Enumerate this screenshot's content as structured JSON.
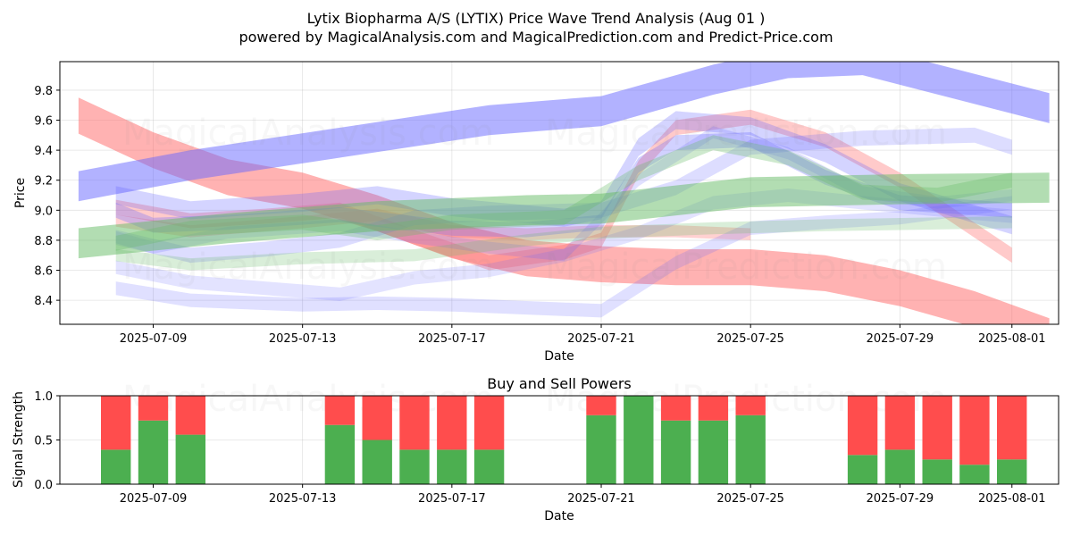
{
  "figure": {
    "title_line1": "Lytix Biopharma A/S (LYTIX) Price Wave Trend Analysis (Aug 01 )",
    "title_line2": "powered by MagicalAnalysis.com and MagicalPrediction.com and Predict-Price.com",
    "watermarks": [
      "MagicalAnalysis.com",
      "MagicalPrediction.com"
    ]
  },
  "colors": {
    "red_band": "#ff6666",
    "blue_band": "#6666ff",
    "green_band": "#66bb66",
    "buy": "#4caf50",
    "sell": "#ff4d4d"
  },
  "chart_data": [
    {
      "type": "area",
      "title": "",
      "xlabel": "Date",
      "ylabel": "Price",
      "x_range": [
        "2025-07-06T12:00",
        "2025-08-02T06:00"
      ],
      "ylim": [
        8.24,
        9.99
      ],
      "x_ticks": [
        "2025-07-09",
        "2025-07-13",
        "2025-07-17",
        "2025-07-21",
        "2025-07-25",
        "2025-07-29",
        "2025-08-01"
      ],
      "y_ticks": [
        8.4,
        8.6,
        8.8,
        9.0,
        9.2,
        9.4,
        9.6,
        9.8
      ],
      "grid": true,
      "series": [
        {
          "color": "red",
          "opacity": 0.5,
          "width": 0.24,
          "points": [
            [
              "2025-07-07",
              9.63
            ],
            [
              "2025-07-09",
              9.4
            ],
            [
              "2025-07-11",
              9.22
            ],
            [
              "2025-07-13",
              9.13
            ],
            [
              "2025-07-15",
              8.98
            ],
            [
              "2025-07-17",
              8.8
            ],
            [
              "2025-07-19",
              8.68
            ],
            [
              "2025-07-21",
              8.64
            ],
            [
              "2025-07-23",
              8.62
            ],
            [
              "2025-07-25",
              8.62
            ],
            [
              "2025-07-27",
              8.58
            ],
            [
              "2025-07-29",
              8.48
            ],
            [
              "2025-07-31",
              8.34
            ],
            [
              "2025-08-02",
              8.16
            ]
          ]
        },
        {
          "color": "red",
          "opacity": 0.35,
          "width": 0.1,
          "points": [
            [
              "2025-07-08",
              9.02
            ],
            [
              "2025-07-10",
              8.93
            ],
            [
              "2025-07-12",
              8.96
            ],
            [
              "2025-07-14",
              9.0
            ],
            [
              "2025-07-16",
              8.82
            ],
            [
              "2025-07-18",
              8.65
            ],
            [
              "2025-07-20",
              8.72
            ],
            [
              "2025-07-21",
              8.8
            ],
            [
              "2025-07-22",
              9.28
            ],
            [
              "2025-07-23",
              9.55
            ],
            [
              "2025-07-25",
              9.62
            ],
            [
              "2025-07-27",
              9.47
            ],
            [
              "2025-07-29",
              9.2
            ],
            [
              "2025-08-01",
              8.7
            ]
          ]
        },
        {
          "color": "red",
          "opacity": 0.3,
          "width": 0.08,
          "points": [
            [
              "2025-07-08",
              8.93
            ],
            [
              "2025-07-10",
              8.86
            ],
            [
              "2025-07-13",
              8.92
            ],
            [
              "2025-07-15",
              8.97
            ],
            [
              "2025-07-17",
              8.86
            ],
            [
              "2025-07-19",
              8.84
            ],
            [
              "2025-07-21",
              8.86
            ],
            [
              "2025-07-23",
              8.86
            ],
            [
              "2025-07-25",
              8.84
            ]
          ]
        },
        {
          "color": "blue",
          "opacity": 0.5,
          "width": 0.2,
          "points": [
            [
              "2025-07-07",
              9.16
            ],
            [
              "2025-07-10",
              9.3
            ],
            [
              "2025-07-14",
              9.45
            ],
            [
              "2025-07-18",
              9.6
            ],
            [
              "2025-07-21",
              9.66
            ],
            [
              "2025-07-24",
              9.87
            ],
            [
              "2025-07-26",
              9.98
            ],
            [
              "2025-07-28",
              10.0
            ],
            [
              "2025-08-02",
              9.68
            ]
          ]
        },
        {
          "color": "blue",
          "opacity": 0.3,
          "width": 0.1,
          "points": [
            [
              "2025-07-08",
              9.0
            ],
            [
              "2025-07-09",
              8.9
            ],
            [
              "2025-07-11",
              8.92
            ],
            [
              "2025-07-14",
              8.97
            ],
            [
              "2025-07-17",
              8.88
            ],
            [
              "2025-07-19",
              8.87
            ],
            [
              "2025-07-21",
              8.92
            ],
            [
              "2025-07-22",
              9.3
            ],
            [
              "2025-07-23",
              9.45
            ],
            [
              "2025-07-25",
              9.47
            ],
            [
              "2025-07-27",
              9.22
            ],
            [
              "2025-07-29",
              9.05
            ],
            [
              "2025-08-01",
              9.0
            ]
          ]
        },
        {
          "color": "blue",
          "opacity": 0.28,
          "width": 0.12,
          "points": [
            [
              "2025-07-08",
              9.1
            ],
            [
              "2025-07-10",
              9.0
            ],
            [
              "2025-07-13",
              9.05
            ],
            [
              "2025-07-15",
              9.1
            ],
            [
              "2025-07-17",
              9.02
            ],
            [
              "2025-07-20",
              8.95
            ],
            [
              "2025-07-21",
              9.0
            ],
            [
              "2025-07-22",
              9.42
            ],
            [
              "2025-07-23",
              9.6
            ],
            [
              "2025-07-25",
              9.56
            ],
            [
              "2025-07-27",
              9.38
            ],
            [
              "2025-07-29",
              9.12
            ],
            [
              "2025-08-01",
              8.9
            ]
          ]
        },
        {
          "color": "blue",
          "opacity": 0.22,
          "width": 0.1,
          "points": [
            [
              "2025-07-08",
              8.82
            ],
            [
              "2025-07-10",
              8.7
            ],
            [
              "2025-07-12",
              8.74
            ],
            [
              "2025-07-14",
              8.8
            ],
            [
              "2025-07-16",
              8.95
            ],
            [
              "2025-07-18",
              8.98
            ],
            [
              "2025-07-21",
              9.0
            ],
            [
              "2025-07-23",
              9.15
            ],
            [
              "2025-07-25",
              9.42
            ],
            [
              "2025-07-28",
              9.48
            ],
            [
              "2025-07-31",
              9.5
            ],
            [
              "2025-08-01",
              9.42
            ]
          ]
        },
        {
          "color": "blue",
          "opacity": 0.2,
          "width": 0.09,
          "points": [
            [
              "2025-07-08",
              8.48
            ],
            [
              "2025-07-10",
              8.4
            ],
            [
              "2025-07-13",
              8.37
            ],
            [
              "2025-07-15",
              8.38
            ],
            [
              "2025-07-17",
              8.37
            ],
            [
              "2025-07-19",
              8.35
            ],
            [
              "2025-07-21",
              8.33
            ],
            [
              "2025-07-23",
              8.65
            ],
            [
              "2025-07-25",
              8.88
            ],
            [
              "2025-07-27",
              8.92
            ],
            [
              "2025-07-29",
              8.95
            ],
            [
              "2025-08-01",
              9.05
            ]
          ]
        },
        {
          "color": "blue",
          "opacity": 0.18,
          "width": 0.09,
          "points": [
            [
              "2025-07-08",
              8.62
            ],
            [
              "2025-07-10",
              8.52
            ],
            [
              "2025-07-12",
              8.48
            ],
            [
              "2025-07-14",
              8.44
            ],
            [
              "2025-07-16",
              8.55
            ],
            [
              "2025-07-18",
              8.6
            ],
            [
              "2025-07-20",
              8.7
            ],
            [
              "2025-07-22",
              8.85
            ],
            [
              "2025-07-24",
              9.05
            ],
            [
              "2025-07-26",
              9.1
            ],
            [
              "2025-07-28",
              9.05
            ],
            [
              "2025-07-31",
              8.98
            ],
            [
              "2025-08-01",
              8.96
            ]
          ]
        },
        {
          "color": "blue",
          "opacity": 0.2,
          "width": 0.08,
          "points": [
            [
              "2025-07-08",
              8.82
            ],
            [
              "2025-07-09",
              8.75
            ],
            [
              "2025-07-11",
              8.85
            ],
            [
              "2025-07-14",
              8.9
            ],
            [
              "2025-07-16",
              8.82
            ],
            [
              "2025-07-18",
              8.75
            ],
            [
              "2025-07-20",
              8.7
            ],
            [
              "2025-07-22",
              9.2
            ],
            [
              "2025-07-24",
              9.52
            ],
            [
              "2025-07-26",
              9.38
            ],
            [
              "2025-07-28",
              9.12
            ],
            [
              "2025-07-30",
              9.05
            ],
            [
              "2025-08-01",
              9.1
            ]
          ]
        },
        {
          "color": "green",
          "opacity": 0.5,
          "width": 0.2,
          "points": [
            [
              "2025-07-07",
              8.78
            ],
            [
              "2025-07-11",
              8.88
            ],
            [
              "2025-07-15",
              8.96
            ],
            [
              "2025-07-19",
              9.0
            ],
            [
              "2025-07-21",
              9.01
            ],
            [
              "2025-07-25",
              9.12
            ],
            [
              "2025-07-29",
              9.14
            ],
            [
              "2025-08-02",
              9.15
            ]
          ]
        },
        {
          "color": "green",
          "opacity": 0.32,
          "width": 0.1,
          "points": [
            [
              "2025-07-08",
              8.78
            ],
            [
              "2025-07-10",
              8.88
            ],
            [
              "2025-07-13",
              8.92
            ],
            [
              "2025-07-15",
              8.85
            ],
            [
              "2025-07-17",
              8.92
            ],
            [
              "2025-07-20",
              8.95
            ],
            [
              "2025-07-22",
              9.25
            ],
            [
              "2025-07-24",
              9.45
            ],
            [
              "2025-07-26",
              9.35
            ],
            [
              "2025-07-28",
              9.12
            ],
            [
              "2025-07-30",
              9.1
            ],
            [
              "2025-08-01",
              9.2
            ]
          ]
        },
        {
          "color": "green",
          "opacity": 0.25,
          "width": 0.08,
          "points": [
            [
              "2025-07-08",
              8.7
            ],
            [
              "2025-07-10",
              8.64
            ],
            [
              "2025-07-13",
              8.68
            ],
            [
              "2025-07-16",
              8.7
            ],
            [
              "2025-07-19",
              8.8
            ],
            [
              "2025-07-21",
              8.85
            ],
            [
              "2025-07-24",
              8.88
            ],
            [
              "2025-07-27",
              8.9
            ],
            [
              "2025-08-01",
              8.92
            ]
          ]
        }
      ]
    },
    {
      "type": "bar",
      "title": "Buy and Sell Powers",
      "xlabel": "Date",
      "ylabel": "Signal Strength",
      "x_range": [
        "2025-07-06T12:00",
        "2025-08-02T06:00"
      ],
      "ylim": [
        0,
        1.0
      ],
      "x_ticks": [
        "2025-07-09",
        "2025-07-13",
        "2025-07-17",
        "2025-07-21",
        "2025-07-25",
        "2025-07-29",
        "2025-08-01"
      ],
      "y_ticks": [
        0.0,
        0.5,
        1.0
      ],
      "grid": true,
      "series": [
        {
          "name": "Buy",
          "color": "green"
        },
        {
          "name": "Sell",
          "color": "red"
        }
      ],
      "bars": [
        {
          "date": "2025-07-08",
          "buy": 0.39
        },
        {
          "date": "2025-07-09",
          "buy": 0.72
        },
        {
          "date": "2025-07-10",
          "buy": 0.56
        },
        {
          "date": "2025-07-14",
          "buy": 0.67
        },
        {
          "date": "2025-07-15",
          "buy": 0.5
        },
        {
          "date": "2025-07-16",
          "buy": 0.39
        },
        {
          "date": "2025-07-17",
          "buy": 0.39
        },
        {
          "date": "2025-07-18",
          "buy": 0.39
        },
        {
          "date": "2025-07-21",
          "buy": 0.78
        },
        {
          "date": "2025-07-22",
          "buy": 1.0
        },
        {
          "date": "2025-07-23",
          "buy": 0.72
        },
        {
          "date": "2025-07-24",
          "buy": 0.72
        },
        {
          "date": "2025-07-25",
          "buy": 0.78
        },
        {
          "date": "2025-07-28",
          "buy": 0.33
        },
        {
          "date": "2025-07-29",
          "buy": 0.39
        },
        {
          "date": "2025-07-30",
          "buy": 0.28
        },
        {
          "date": "2025-07-31",
          "buy": 0.22
        },
        {
          "date": "2025-08-01",
          "buy": 0.28
        }
      ]
    }
  ]
}
